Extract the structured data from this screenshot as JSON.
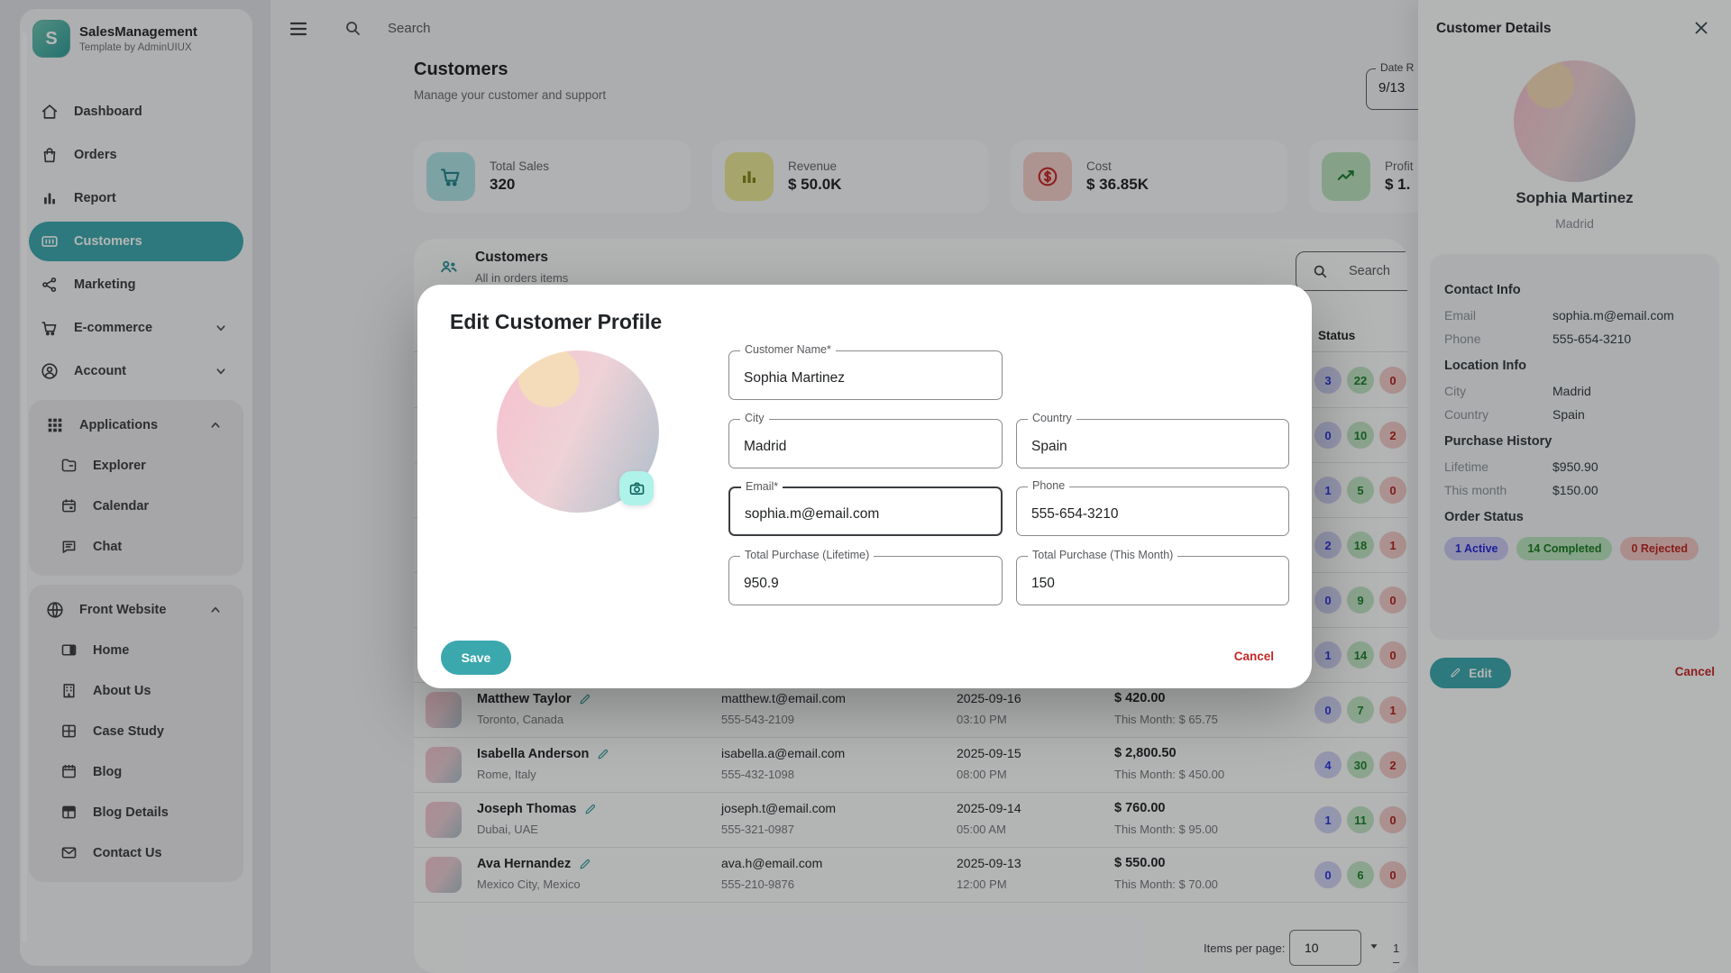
{
  "brand": {
    "name": "SalesManagement",
    "subtitle": "Template by AdminUIUX",
    "logo_letter": "S",
    "accent": "#3BA8AE"
  },
  "topbar": {
    "search_placeholder": "Search"
  },
  "page": {
    "title": "Customers",
    "subtitle": "Manage your customer and support",
    "date_field": {
      "label": "Date R",
      "value": "9/13"
    }
  },
  "sidebar": {
    "items": [
      {
        "label": "Dashboard",
        "icon": "home",
        "active": false
      },
      {
        "label": "Orders",
        "icon": "bag",
        "active": false
      },
      {
        "label": "Report",
        "icon": "chart",
        "active": false
      },
      {
        "label": "Customers",
        "icon": "idcard",
        "active": true
      },
      {
        "label": "Marketing",
        "icon": "share",
        "active": false
      },
      {
        "label": "E-commerce",
        "icon": "cart",
        "active": false,
        "chevron": "down"
      },
      {
        "label": "Account",
        "icon": "user",
        "active": false,
        "chevron": "down"
      }
    ],
    "groups": [
      {
        "label": "Applications",
        "icon": "grid",
        "chevron": "up",
        "children": [
          {
            "label": "Explorer",
            "icon": "folder"
          },
          {
            "label": "Calendar",
            "icon": "calendar"
          },
          {
            "label": "Chat",
            "icon": "chat"
          }
        ]
      },
      {
        "label": "Front Website",
        "icon": "globe",
        "chevron": "up",
        "children": [
          {
            "label": "Home",
            "icon": "window"
          },
          {
            "label": "About Us",
            "icon": "building"
          },
          {
            "label": "Case Study",
            "icon": "layout"
          },
          {
            "label": "Blog",
            "icon": "blog"
          },
          {
            "label": "Blog Details",
            "icon": "layout2"
          },
          {
            "label": "Contact Us",
            "icon": "mail"
          }
        ]
      }
    ]
  },
  "stats": [
    {
      "label": "Total Sales",
      "value": "320",
      "icon": "cart",
      "bg": "#aee3e6",
      "fg": "#23848b"
    },
    {
      "label": "Revenue",
      "value": "$ 50.0K",
      "icon": "bars",
      "bg": "#e7e795",
      "fg": "#85851a"
    },
    {
      "label": "Cost",
      "value": "$ 36.85K",
      "icon": "dollar",
      "bg": "#f3cfcb",
      "fg": "#c62828"
    },
    {
      "label": "Profit",
      "value": "$ 1.",
      "icon": "trend",
      "bg": "#b9e2be",
      "fg": "#1e7a2e"
    }
  ],
  "table": {
    "header_title": "Customers",
    "header_subtitle": "All in orders items",
    "search_placeholder": "Search",
    "status_header": "Status",
    "hidden_rows": [
      [
        3,
        22,
        0
      ],
      [
        0,
        10,
        2
      ],
      [
        1,
        5,
        0
      ],
      [
        2,
        18,
        1
      ],
      [
        0,
        9,
        0
      ],
      [
        1,
        14,
        0
      ]
    ],
    "rows": [
      {
        "name": "Matthew Taylor",
        "location": "Toronto, Canada",
        "email": "matthew.t@email.com",
        "phone": "555-543-2109",
        "date": "2025-09-16",
        "time": "03:10 PM",
        "amount": "$ 420.00",
        "month": "This Month: $ 65.75",
        "status": [
          0,
          7,
          1
        ]
      },
      {
        "name": "Isabella Anderson",
        "location": "Rome, Italy",
        "email": "isabella.a@email.com",
        "phone": "555-432-1098",
        "date": "2025-09-15",
        "time": "08:00 PM",
        "amount": "$ 2,800.50",
        "month": "This Month: $ 450.00",
        "status": [
          4,
          30,
          2
        ]
      },
      {
        "name": "Joseph Thomas",
        "location": "Dubai, UAE",
        "email": "joseph.t@email.com",
        "phone": "555-321-0987",
        "date": "2025-09-14",
        "time": "05:00 AM",
        "amount": "$ 760.00",
        "month": "This Month: $ 95.00",
        "status": [
          1,
          11,
          0
        ]
      },
      {
        "name": "Ava Hernandez",
        "location": "Mexico City, Mexico",
        "email": "ava.h@email.com",
        "phone": "555-210-9876",
        "date": "2025-09-13",
        "time": "12:00 PM",
        "amount": "$ 550.00",
        "month": "This Month: $ 70.00",
        "status": [
          0,
          6,
          0
        ]
      }
    ],
    "pagination": {
      "label": "Items per page:",
      "value": "10",
      "range": "1 –"
    }
  },
  "modal": {
    "title": "Edit Customer Profile",
    "fields": {
      "name": {
        "label": "Customer Name*",
        "value": "Sophia Martinez"
      },
      "city": {
        "label": "City",
        "value": "Madrid"
      },
      "country": {
        "label": "Country",
        "value": "Spain"
      },
      "email": {
        "label": "Email*",
        "value": "sophia.m@email.com"
      },
      "phone": {
        "label": "Phone",
        "value": "555-654-3210"
      },
      "lifetime": {
        "label": "Total Purchase (Lifetime)",
        "value": "950.9"
      },
      "month": {
        "label": "Total Purchase (This Month)",
        "value": "150"
      }
    },
    "save_label": "Save",
    "cancel_label": "Cancel"
  },
  "panel": {
    "title": "Customer Details",
    "name": "Sophia Martinez",
    "city": "Madrid",
    "sections": [
      {
        "title": "Contact Info",
        "rows": [
          [
            "Email",
            "sophia.m@email.com"
          ],
          [
            "Phone",
            "555-654-3210"
          ]
        ]
      },
      {
        "title": "Location Info",
        "rows": [
          [
            "City",
            "Madrid"
          ],
          [
            "Country",
            "Spain"
          ]
        ]
      },
      {
        "title": "Purchase History",
        "rows": [
          [
            "Lifetime",
            "$950.90"
          ],
          [
            "This month",
            "$150.00"
          ]
        ]
      }
    ],
    "order_status": {
      "title": "Order Status",
      "badges": [
        {
          "label": "1 Active",
          "type": "active"
        },
        {
          "label": "14 Completed",
          "type": "completed"
        },
        {
          "label": "0 Rejected",
          "type": "rejected"
        }
      ]
    },
    "edit_label": "Edit",
    "cancel_label": "Cancel"
  }
}
